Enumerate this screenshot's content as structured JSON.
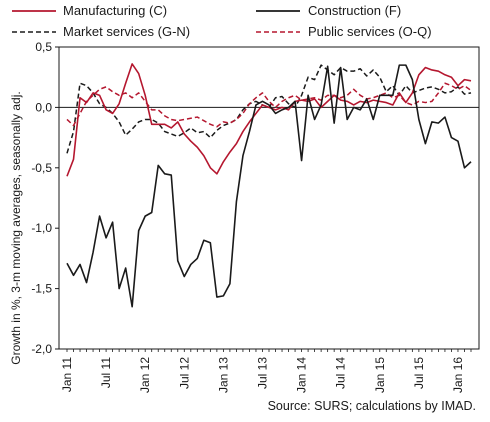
{
  "chart_data": {
    "type": "line",
    "ylabel": "Growth in %, 3-m moving averages, seasonally adj.",
    "ylim": [
      -2.0,
      0.5
    ],
    "yticks": [
      0.5,
      0.0,
      -0.5,
      -1.0,
      -1.5,
      -2.0
    ],
    "ytick_labels": [
      "0,5",
      "0,0",
      "-0,5",
      "-1,0",
      "-1,5",
      "-2,0"
    ],
    "x_start": "Jan 11",
    "xtick_labels": [
      {
        "label": "Jan 11",
        "index": 0
      },
      {
        "label": "Jul 11",
        "index": 6
      },
      {
        "label": "Jan 12",
        "index": 12
      },
      {
        "label": "Jul 12",
        "index": 18
      },
      {
        "label": "Jan 13",
        "index": 24
      },
      {
        "label": "Jul 13",
        "index": 30
      },
      {
        "label": "Jan 14",
        "index": 36
      },
      {
        "label": "Jul 14",
        "index": 42
      },
      {
        "label": "Jan 15",
        "index": 48
      },
      {
        "label": "Jul 15",
        "index": 54
      },
      {
        "label": "Jan 16",
        "index": 60
      }
    ],
    "grid": false,
    "legend": "top",
    "source": "Source: SURS; calculations by IMAD.",
    "series": [
      {
        "name": "Manufacturing (C)",
        "color": "#b5172f",
        "dash": "solid",
        "values": [
          -0.57,
          -0.43,
          0.08,
          0.04,
          0.12,
          0.1,
          -0.02,
          -0.05,
          0.03,
          0.2,
          0.36,
          0.28,
          0.1,
          -0.14,
          -0.14,
          -0.14,
          -0.17,
          -0.12,
          -0.22,
          -0.28,
          -0.33,
          -0.4,
          -0.5,
          -0.55,
          -0.45,
          -0.37,
          -0.3,
          -0.2,
          -0.12,
          -0.05,
          0.02,
          0.0,
          -0.02,
          0.0,
          -0.02,
          0.05,
          0.06,
          0.05,
          0.07,
          0.0,
          0.05,
          0.1,
          0.06,
          0.05,
          0.02,
          0.05,
          0.04,
          0.06,
          0.05,
          0.04,
          0.02,
          0.12,
          0.04,
          0.12,
          0.27,
          0.33,
          0.31,
          0.3,
          0.27,
          0.25,
          0.18,
          0.23,
          0.22
        ]
      },
      {
        "name": "Construction (F)",
        "color": "#1a1a1a",
        "dash": "solid",
        "values": [
          -1.29,
          -1.39,
          -1.3,
          -1.45,
          -1.2,
          -0.9,
          -1.08,
          -0.95,
          -1.5,
          -1.33,
          -1.65,
          -1.02,
          -0.9,
          -0.87,
          -0.48,
          -0.55,
          -0.56,
          -1.27,
          -1.4,
          -1.3,
          -1.25,
          -1.1,
          -1.12,
          -1.57,
          -1.56,
          -1.46,
          -0.78,
          -0.4,
          -0.2,
          0.02,
          0.05,
          0.02,
          -0.05,
          -0.02,
          0.0,
          0.05,
          -0.44,
          0.1,
          -0.1,
          0.02,
          0.34,
          -0.13,
          0.33,
          -0.1,
          0.0,
          -0.02,
          0.07,
          -0.1,
          0.1,
          0.1,
          0.1,
          0.35,
          0.35,
          0.23,
          -0.1,
          -0.3,
          -0.12,
          -0.13,
          -0.08,
          -0.25,
          -0.28,
          -0.5,
          -0.45
        ]
      },
      {
        "name": "Market services (G-N)",
        "color": "#1a1a1a",
        "dash": "dashed",
        "values": [
          -0.38,
          -0.2,
          0.2,
          0.18,
          0.12,
          0.03,
          0.0,
          -0.05,
          -0.12,
          -0.23,
          -0.18,
          -0.12,
          -0.1,
          -0.1,
          -0.13,
          -0.2,
          -0.22,
          -0.24,
          -0.21,
          -0.17,
          -0.21,
          -0.2,
          -0.25,
          -0.19,
          -0.15,
          -0.13,
          -0.1,
          -0.02,
          0.03,
          0.05,
          0.02,
          0.0,
          0.08,
          0.09,
          0.03,
          0.0,
          0.1,
          0.25,
          0.23,
          0.35,
          0.31,
          0.27,
          0.33,
          0.3,
          0.3,
          0.32,
          0.26,
          0.31,
          0.25,
          0.13,
          0.18,
          0.1,
          0.18,
          0.12,
          0.14,
          0.16,
          0.17,
          0.15,
          0.12,
          0.13,
          0.17,
          0.11,
          0.12
        ]
      },
      {
        "name": "Public services (O-Q)",
        "color": "#b5172f",
        "dash": "dashed",
        "values": [
          -0.1,
          -0.15,
          -0.05,
          0.05,
          0.1,
          0.15,
          0.17,
          0.13,
          0.1,
          0.12,
          0.08,
          0.12,
          0.05,
          -0.02,
          -0.02,
          -0.07,
          -0.1,
          -0.11,
          -0.1,
          -0.09,
          -0.08,
          -0.11,
          -0.14,
          -0.16,
          -0.12,
          -0.13,
          -0.1,
          -0.05,
          0.03,
          0.08,
          0.12,
          0.05,
          0.0,
          0.05,
          0.08,
          0.1,
          0.06,
          0.07,
          0.08,
          0.06,
          0.1,
          0.1,
          0.08,
          0.1,
          0.15,
          0.1,
          0.07,
          0.08,
          0.1,
          0.12,
          0.08,
          0.1,
          0.04,
          0.02,
          0.05,
          0.04,
          0.05,
          0.12,
          0.2,
          0.18,
          0.15,
          0.18,
          0.14
        ]
      }
    ]
  }
}
